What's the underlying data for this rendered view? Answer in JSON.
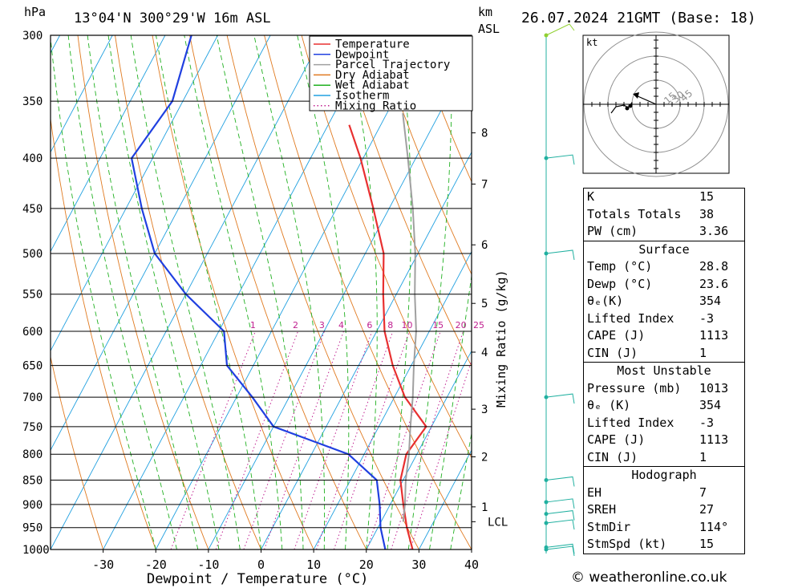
{
  "header": {
    "pressure_unit": "hPa",
    "location": "13°04'N  300°29'W  16m  ASL",
    "km_label": "km",
    "asl_label": "ASL",
    "datetime": "26.07.2024  21GMT  (Base: 18)"
  },
  "chart_data": {
    "type": "line",
    "xlabel": "Dewpoint / Temperature (°C)",
    "ylabel": "",
    "y_scale": "log",
    "xlim": [
      -40,
      40
    ],
    "ylim": [
      1000,
      300
    ],
    "x_ticks": [
      -30,
      -20,
      -10,
      0,
      10,
      20,
      30,
      40
    ],
    "pressure_levels": [
      300,
      350,
      400,
      450,
      500,
      550,
      600,
      650,
      700,
      750,
      800,
      850,
      900,
      950,
      1000
    ],
    "km_ticks": [
      {
        "label": "8",
        "p": 377
      },
      {
        "label": "7",
        "p": 425
      },
      {
        "label": "6",
        "p": 490
      },
      {
        "label": "5",
        "p": 562
      },
      {
        "label": "4",
        "p": 630
      },
      {
        "label": "3",
        "p": 720
      },
      {
        "label": "2",
        "p": 805
      },
      {
        "label": "1",
        "p": 905
      },
      {
        "label": "LCL",
        "p": 937
      }
    ],
    "mixing_ratio_label": "Mixing Ratio (g/kg)",
    "mixing_ratio_values": [
      "1",
      "2",
      "3",
      "4",
      "6",
      "8",
      "10",
      "15",
      "20",
      "25"
    ],
    "legend": {
      "position": "top-center",
      "entries": [
        {
          "name": "Temperature",
          "color": "#e83030"
        },
        {
          "name": "Dewpoint",
          "color": "#2040e0"
        },
        {
          "name": "Parcel Trajectory",
          "color": "#a0a0a0"
        },
        {
          "name": "Dry Adiabat",
          "color": "#e07a20"
        },
        {
          "name": "Wet Adiabat",
          "color": "#20b020"
        },
        {
          "name": "Isotherm",
          "color": "#20a0e0"
        },
        {
          "name": "Mixing Ratio",
          "color": "#c02090"
        }
      ]
    },
    "series": [
      {
        "name": "Temperature",
        "points": [
          [
            1000,
            28.8
          ],
          [
            950,
            25.5
          ],
          [
            900,
            22.5
          ],
          [
            850,
            19.5
          ],
          [
            800,
            18.0
          ],
          [
            750,
            19.0
          ],
          [
            700,
            12.0
          ],
          [
            650,
            6.5
          ],
          [
            600,
            1.5
          ],
          [
            550,
            -2.5
          ],
          [
            500,
            -6.5
          ],
          [
            450,
            -13.0
          ],
          [
            400,
            -20.5
          ],
          [
            370,
            -26.0
          ]
        ]
      },
      {
        "name": "Dewpoint",
        "points": [
          [
            1000,
            23.6
          ],
          [
            950,
            20.5
          ],
          [
            900,
            18.0
          ],
          [
            850,
            15.0
          ],
          [
            800,
            7.0
          ],
          [
            750,
            -10.0
          ],
          [
            700,
            -17.0
          ],
          [
            650,
            -25.0
          ],
          [
            600,
            -29.0
          ],
          [
            550,
            -40.0
          ],
          [
            500,
            -50.0
          ],
          [
            450,
            -57.0
          ],
          [
            400,
            -64.0
          ],
          [
            350,
            -62.0
          ],
          [
            300,
            -65.0
          ]
        ]
      },
      {
        "name": "Parcel Trajectory",
        "points": [
          [
            937,
            24.2
          ],
          [
            900,
            22.8
          ],
          [
            850,
            20.5
          ],
          [
            800,
            18.5
          ],
          [
            750,
            16.0
          ],
          [
            700,
            13.5
          ],
          [
            650,
            10.5
          ],
          [
            600,
            7.5
          ],
          [
            550,
            3.5
          ],
          [
            500,
            -0.5
          ],
          [
            450,
            -5.5
          ],
          [
            400,
            -11.5
          ],
          [
            360,
            -17.0
          ]
        ]
      }
    ]
  },
  "hodograph": {
    "unit": "kt",
    "ring_labels": [
      "15",
      "30",
      "45"
    ]
  },
  "indices": {
    "k_label": "K",
    "k": "15",
    "tt_label": "Totals Totals",
    "tt": "38",
    "pw_label": "PW (cm)",
    "pw": "3.36"
  },
  "surface": {
    "title": "Surface",
    "temp_label": "Temp (°C)",
    "temp": "28.8",
    "dewp_label": "Dewp (°C)",
    "dewp": "23.6",
    "thetae_label": "θₑ(K)",
    "thetae": "354",
    "li_label": "Lifted Index",
    "li": "-3",
    "cape_label": "CAPE (J)",
    "cape": "1113",
    "cin_label": "CIN (J)",
    "cin": "1"
  },
  "most_unstable": {
    "title": "Most Unstable",
    "pressure_label": "Pressure (mb)",
    "pressure": "1013",
    "thetae_label": "θₑ (K)",
    "thetae": "354",
    "li_label": "Lifted Index",
    "li": "-3",
    "cape_label": "CAPE (J)",
    "cape": "1113",
    "cin_label": "CIN (J)",
    "cin": "1"
  },
  "hodo_table": {
    "title": "Hodograph",
    "eh_label": "EH",
    "eh": "7",
    "sreh_label": "SREH",
    "sreh": "27",
    "stmdir_label": "StmDir",
    "stmdir": "114°",
    "stmspd_label": "StmSpd (kt)",
    "stmspd": "15"
  },
  "credit": "© weatheronline.co.uk"
}
